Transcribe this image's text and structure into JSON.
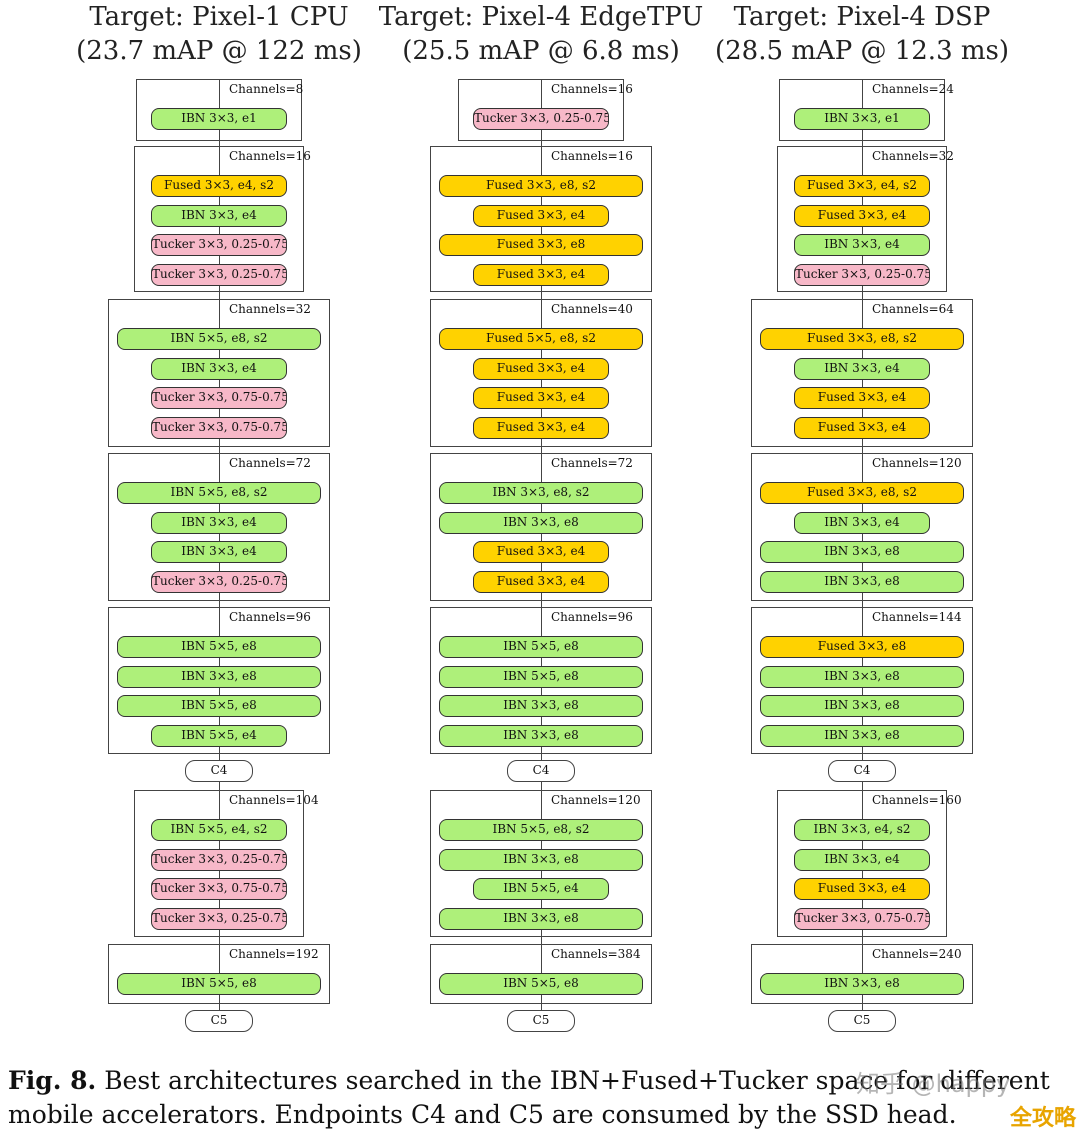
{
  "columns": [
    {
      "title_line1": "Target: Pixel-1 CPU",
      "title_line2": "(23.7 mAP @ 122 ms)",
      "stages": [
        {
          "channels": "Channels=8",
          "blocks": [
            {
              "label": "IBN 3×3, e1",
              "type": "ibn",
              "wide": false
            }
          ]
        },
        {
          "channels": "Channels=16",
          "blocks": [
            {
              "label": "Fused 3×3, e4, s2",
              "type": "fused",
              "wide": false
            },
            {
              "label": "IBN 3×3, e4",
              "type": "ibn",
              "wide": false
            },
            {
              "label": "Tucker 3×3, 0.25-0.75",
              "type": "tucker",
              "wide": false
            },
            {
              "label": "Tucker 3×3, 0.25-0.75",
              "type": "tucker",
              "wide": false
            }
          ]
        },
        {
          "channels": "Channels=32",
          "blocks": [
            {
              "label": "IBN 5×5, e8, s2",
              "type": "ibn",
              "wide": true
            },
            {
              "label": "IBN 3×3, e4",
              "type": "ibn",
              "wide": false
            },
            {
              "label": "Tucker 3×3, 0.75-0.75",
              "type": "tucker",
              "wide": false
            },
            {
              "label": "Tucker 3×3, 0.75-0.75",
              "type": "tucker",
              "wide": false
            }
          ]
        },
        {
          "channels": "Channels=72",
          "blocks": [
            {
              "label": "IBN 5×5, e8, s2",
              "type": "ibn",
              "wide": true
            },
            {
              "label": "IBN 3×3, e4",
              "type": "ibn",
              "wide": false
            },
            {
              "label": "IBN 3×3, e4",
              "type": "ibn",
              "wide": false
            },
            {
              "label": "Tucker 3×3, 0.25-0.75",
              "type": "tucker",
              "wide": false
            }
          ]
        },
        {
          "channels": "Channels=96",
          "blocks": [
            {
              "label": "IBN 5×5, e8",
              "type": "ibn",
              "wide": true
            },
            {
              "label": "IBN 3×3, e8",
              "type": "ibn",
              "wide": true
            },
            {
              "label": "IBN 5×5, e8",
              "type": "ibn",
              "wide": true
            },
            {
              "label": "IBN 5×5, e4",
              "type": "ibn",
              "wide": false
            }
          ]
        },
        {
          "endpoint": "C4"
        },
        {
          "channels": "Channels=104",
          "blocks": [
            {
              "label": "IBN 5×5, e4, s2",
              "type": "ibn",
              "wide": false
            },
            {
              "label": "Tucker 3×3, 0.25-0.75",
              "type": "tucker",
              "wide": false
            },
            {
              "label": "Tucker 3×3, 0.75-0.75",
              "type": "tucker",
              "wide": false
            },
            {
              "label": "Tucker 3×3, 0.25-0.75",
              "type": "tucker",
              "wide": false
            }
          ]
        },
        {
          "channels": "Channels=192",
          "blocks": [
            {
              "label": "IBN 5×5, e8",
              "type": "ibn",
              "wide": true
            }
          ]
        },
        {
          "endpoint": "C5"
        }
      ]
    },
    {
      "title_line1": "Target: Pixel-4 EdgeTPU",
      "title_line2": "(25.5 mAP @ 6.8 ms)",
      "stages": [
        {
          "channels": "Channels=16",
          "blocks": [
            {
              "label": "Tucker 3×3, 0.25-0.75",
              "type": "tucker",
              "wide": false
            }
          ]
        },
        {
          "channels": "Channels=16",
          "blocks": [
            {
              "label": "Fused 3×3, e8, s2",
              "type": "fused",
              "wide": true
            },
            {
              "label": "Fused 3×3, e4",
              "type": "fused",
              "wide": false
            },
            {
              "label": "Fused 3×3, e8",
              "type": "fused",
              "wide": true
            },
            {
              "label": "Fused 3×3, e4",
              "type": "fused",
              "wide": false
            }
          ]
        },
        {
          "channels": "Channels=40",
          "blocks": [
            {
              "label": "Fused 5×5, e8, s2",
              "type": "fused",
              "wide": true
            },
            {
              "label": "Fused 3×3, e4",
              "type": "fused",
              "wide": false
            },
            {
              "label": "Fused 3×3, e4",
              "type": "fused",
              "wide": false
            },
            {
              "label": "Fused 3×3, e4",
              "type": "fused",
              "wide": false
            }
          ]
        },
        {
          "channels": "Channels=72",
          "blocks": [
            {
              "label": "IBN 3×3, e8, s2",
              "type": "ibn",
              "wide": true
            },
            {
              "label": "IBN 3×3, e8",
              "type": "ibn",
              "wide": true
            },
            {
              "label": "Fused 3×3, e4",
              "type": "fused",
              "wide": false
            },
            {
              "label": "Fused 3×3, e4",
              "type": "fused",
              "wide": false
            }
          ]
        },
        {
          "channels": "Channels=96",
          "blocks": [
            {
              "label": "IBN 5×5, e8",
              "type": "ibn",
              "wide": true
            },
            {
              "label": "IBN 5×5, e8",
              "type": "ibn",
              "wide": true
            },
            {
              "label": "IBN 3×3, e8",
              "type": "ibn",
              "wide": true
            },
            {
              "label": "IBN 3×3, e8",
              "type": "ibn",
              "wide": true
            }
          ]
        },
        {
          "endpoint": "C4"
        },
        {
          "channels": "Channels=120",
          "blocks": [
            {
              "label": "IBN 5×5, e8, s2",
              "type": "ibn",
              "wide": true
            },
            {
              "label": "IBN 3×3, e8",
              "type": "ibn",
              "wide": true
            },
            {
              "label": "IBN 5×5, e4",
              "type": "ibn",
              "wide": false
            },
            {
              "label": "IBN 3×3, e8",
              "type": "ibn",
              "wide": true
            }
          ]
        },
        {
          "channels": "Channels=384",
          "blocks": [
            {
              "label": "IBN 5×5, e8",
              "type": "ibn",
              "wide": true
            }
          ]
        },
        {
          "endpoint": "C5"
        }
      ]
    },
    {
      "title_line1": "Target: Pixel-4 DSP",
      "title_line2": "(28.5 mAP @ 12.3 ms)",
      "stages": [
        {
          "channels": "Channels=24",
          "blocks": [
            {
              "label": "IBN 3×3, e1",
              "type": "ibn",
              "wide": false
            }
          ]
        },
        {
          "channels": "Channels=32",
          "blocks": [
            {
              "label": "Fused 3×3, e4, s2",
              "type": "fused",
              "wide": false
            },
            {
              "label": "Fused 3×3, e4",
              "type": "fused",
              "wide": false
            },
            {
              "label": "IBN 3×3, e4",
              "type": "ibn",
              "wide": false
            },
            {
              "label": "Tucker 3×3, 0.25-0.75",
              "type": "tucker",
              "wide": false
            }
          ]
        },
        {
          "channels": "Channels=64",
          "blocks": [
            {
              "label": "Fused 3×3, e8, s2",
              "type": "fused",
              "wide": true
            },
            {
              "label": "IBN 3×3, e4",
              "type": "ibn",
              "wide": false
            },
            {
              "label": "Fused 3×3, e4",
              "type": "fused",
              "wide": false
            },
            {
              "label": "Fused 3×3, e4",
              "type": "fused",
              "wide": false
            }
          ]
        },
        {
          "channels": "Channels=120",
          "blocks": [
            {
              "label": "Fused 3×3, e8, s2",
              "type": "fused",
              "wide": true
            },
            {
              "label": "IBN 3×3, e4",
              "type": "ibn",
              "wide": false
            },
            {
              "label": "IBN 3×3, e8",
              "type": "ibn",
              "wide": true
            },
            {
              "label": "IBN 3×3, e8",
              "type": "ibn",
              "wide": true
            }
          ]
        },
        {
          "channels": "Channels=144",
          "blocks": [
            {
              "label": "Fused 3×3, e8",
              "type": "fused",
              "wide": true
            },
            {
              "label": "IBN 3×3, e8",
              "type": "ibn",
              "wide": true
            },
            {
              "label": "IBN 3×3, e8",
              "type": "ibn",
              "wide": true
            },
            {
              "label": "IBN 3×3, e8",
              "type": "ibn",
              "wide": true
            }
          ]
        },
        {
          "endpoint": "C4"
        },
        {
          "channels": "Channels=160",
          "blocks": [
            {
              "label": "IBN 3×3, e4, s2",
              "type": "ibn",
              "wide": false
            },
            {
              "label": "IBN 3×3, e4",
              "type": "ibn",
              "wide": false
            },
            {
              "label": "Fused 3×3, e4",
              "type": "fused",
              "wide": false
            },
            {
              "label": "Tucker 3×3, 0.75-0.75",
              "type": "tucker",
              "wide": false
            }
          ]
        },
        {
          "channels": "Channels=240",
          "blocks": [
            {
              "label": "IBN 3×3, e8",
              "type": "ibn",
              "wide": true
            }
          ]
        },
        {
          "endpoint": "C5"
        }
      ]
    }
  ],
  "caption": {
    "fig_label": "Fig. 8.",
    "text": "Best architectures searched in the IBN+Fused+Tucker space for different mobile accelerators. Endpoints C4 and C5 are consumed by the SSD head."
  },
  "watermark": {
    "text": "知乎 @happy",
    "logo_text": "全攻略"
  }
}
